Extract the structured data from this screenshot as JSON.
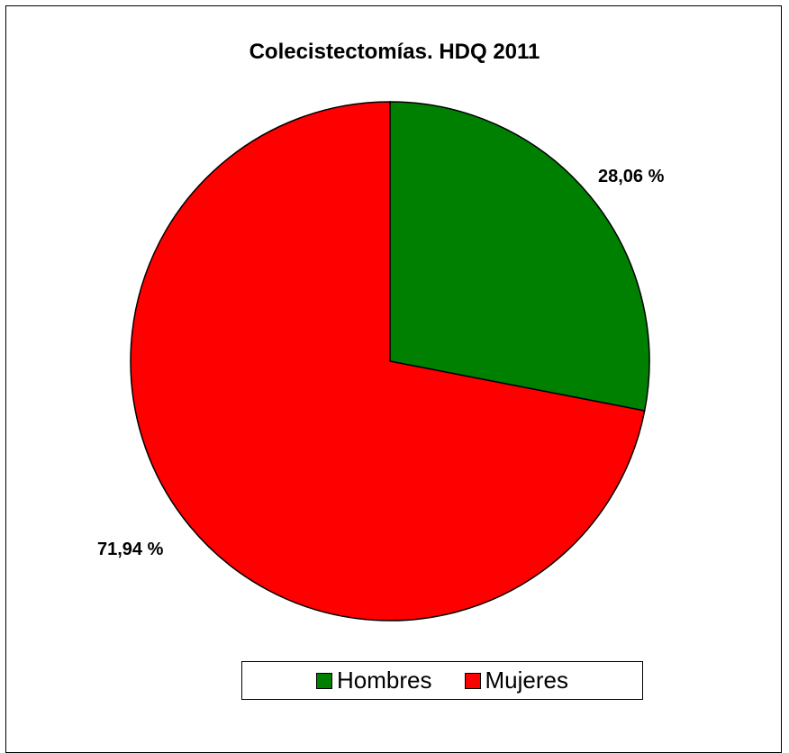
{
  "chart_data": {
    "type": "pie",
    "title": "Colecistectomías. HDQ 2011",
    "categories": [
      "Hombres",
      "Mujeres"
    ],
    "values": [
      28.06,
      71.94
    ],
    "labels": [
      "28,06 %",
      "71,94 %"
    ],
    "colors": [
      "#008000",
      "#ff0000"
    ],
    "legend": "bottom"
  }
}
